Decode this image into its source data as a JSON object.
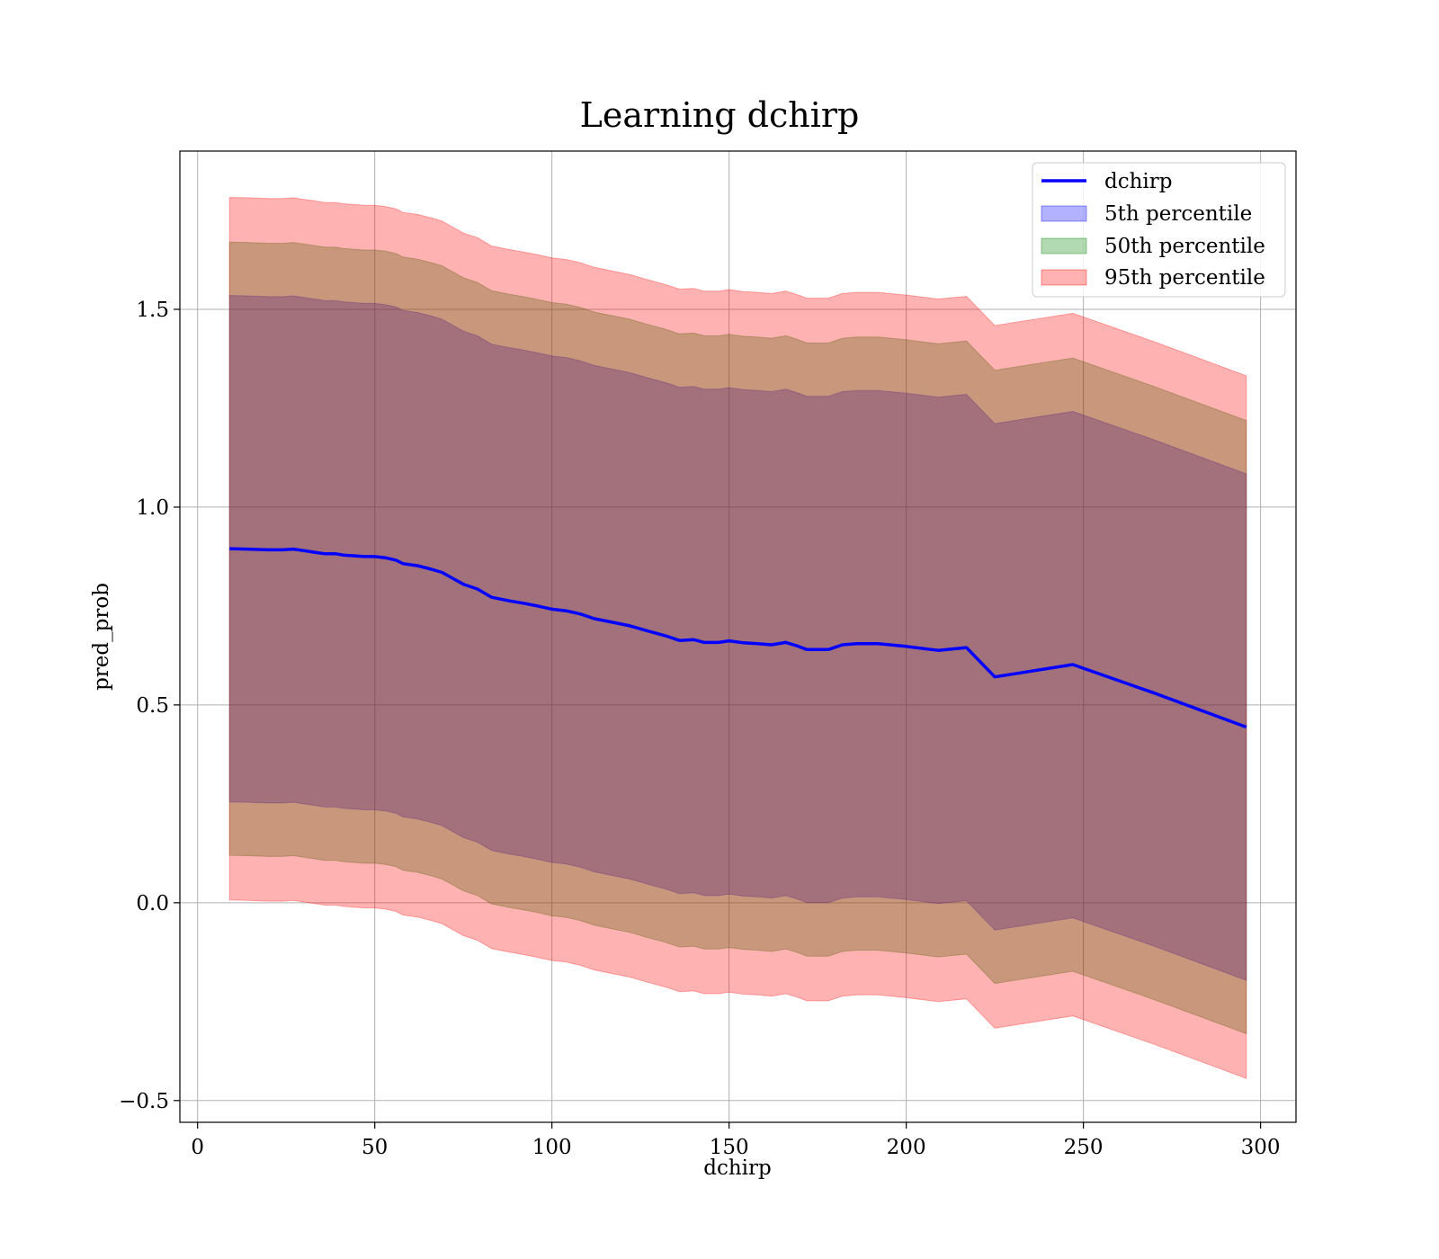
{
  "chart_data": {
    "type": "area",
    "title": "Learning dchirp",
    "xlabel": "dchirp",
    "ylabel": "pred_prob",
    "xlim": [
      -5,
      310
    ],
    "ylim": [
      -0.555,
      1.9
    ],
    "xticks": [
      0,
      50,
      100,
      150,
      200,
      250,
      300
    ],
    "yticks": [
      -0.5,
      0.0,
      0.5,
      1.0,
      1.5
    ],
    "xtick_labels": [
      "0",
      "50",
      "100",
      "150",
      "200",
      "250",
      "300"
    ],
    "ytick_labels": [
      "−0.5",
      "0.0",
      "0.5",
      "1.0",
      "1.5"
    ],
    "grid": true,
    "legend_position": "top-right",
    "x": [
      9,
      14,
      20,
      24,
      27,
      30,
      33,
      36,
      39,
      41,
      44,
      47,
      50,
      53,
      56,
      58,
      62,
      66,
      69,
      72,
      75,
      79,
      83,
      88,
      92,
      96,
      100,
      104,
      108,
      112,
      117,
      122,
      127,
      132,
      136,
      140,
      143,
      147,
      150,
      154,
      158,
      162,
      166,
      169,
      172,
      175,
      178,
      182,
      186,
      192,
      200,
      209,
      217,
      225,
      247,
      270,
      296
    ],
    "series": [
      {
        "name": "dchirp",
        "kind": "line",
        "color": "#0000ff",
        "values": [
          0.895,
          0.894,
          0.892,
          0.892,
          0.894,
          0.89,
          0.886,
          0.882,
          0.882,
          0.879,
          0.877,
          0.875,
          0.875,
          0.872,
          0.866,
          0.857,
          0.852,
          0.843,
          0.835,
          0.82,
          0.805,
          0.793,
          0.772,
          0.763,
          0.757,
          0.75,
          0.742,
          0.738,
          0.73,
          0.718,
          0.709,
          0.7,
          0.687,
          0.675,
          0.663,
          0.665,
          0.658,
          0.658,
          0.662,
          0.657,
          0.655,
          0.652,
          0.658,
          0.65,
          0.64,
          0.64,
          0.64,
          0.652,
          0.655,
          0.655,
          0.648,
          0.638,
          0.645,
          0.571,
          0.602,
          0.53,
          0.444
        ]
      },
      {
        "name": "5th percentile",
        "kind": "band",
        "color": "#0000ff",
        "alpha": 0.3,
        "half_width": 0.64
      },
      {
        "name": "50th percentile",
        "kind": "band",
        "color": "#008000",
        "alpha": 0.3,
        "half_width": 0.775
      },
      {
        "name": "95th percentile",
        "kind": "band",
        "color": "#ff0000",
        "alpha": 0.3,
        "half_width": 0.888
      }
    ]
  }
}
